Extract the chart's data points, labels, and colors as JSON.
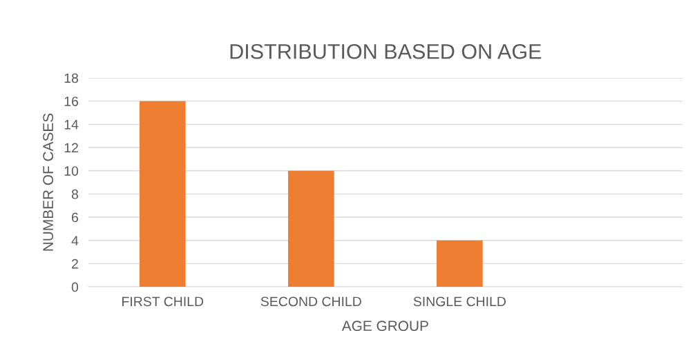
{
  "chart_data": {
    "type": "bar",
    "title": "DISTRIBUTION BASED ON AGE",
    "xlabel": "AGE GROUP",
    "ylabel": "NUMBER OF CASES",
    "categories": [
      "FIRST CHILD",
      "SECOND CHILD",
      "SINGLE CHILD",
      null
    ],
    "values": [
      16,
      10,
      4,
      null
    ],
    "color": "#ed7d31",
    "ylim": [
      0,
      18
    ],
    "yticks": [
      0,
      2,
      4,
      6,
      8,
      10,
      12,
      14,
      16,
      18
    ],
    "grid": "y",
    "legend": false
  }
}
